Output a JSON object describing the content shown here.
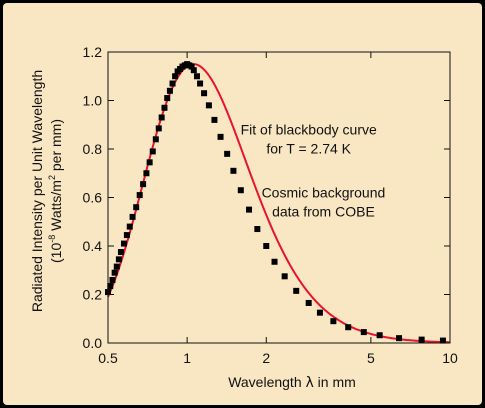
{
  "chart_data": {
    "type": "scatter",
    "title": "",
    "xlabel_prefix": "Wavelength ",
    "xlabel_symbol": "λ",
    "xlabel_suffix": " in mm",
    "ylabel_line1": "Radiated Intensity per Unit Wavelength",
    "ylabel_line2_a": "(10",
    "ylabel_line2_sup1": "-8",
    "ylabel_line2_b": " Watts/m",
    "ylabel_line2_sup2": "2",
    "ylabel_line2_c": " per mm)",
    "x_scale": "log",
    "xlim": [
      0.5,
      10
    ],
    "ylim": [
      0,
      1.2
    ],
    "x_ticks": [
      0.5,
      1,
      2,
      5,
      10
    ],
    "x_tick_labels": [
      "0.5",
      "1",
      "2",
      "5",
      "10"
    ],
    "y_ticks": [
      0,
      0.2,
      0.4,
      0.6,
      0.8,
      1.0,
      1.2
    ],
    "y_tick_labels": [
      "0.0",
      "0.2",
      "0.4",
      "0.6",
      "0.8",
      "1.0",
      "1.2"
    ],
    "grid": false,
    "annotations": [
      {
        "lines": [
          "Fit of blackbody curve",
          "for T = 2.74 K"
        ],
        "x": 2.9,
        "y": 0.86
      },
      {
        "lines": [
          "Cosmic background",
          "data from COBE"
        ],
        "x": 3.3,
        "y": 0.6
      }
    ],
    "series": [
      {
        "kind": "data",
        "marker": "square",
        "color": "#000000",
        "x": [
          0.5,
          0.51,
          0.52,
          0.53,
          0.54,
          0.55,
          0.56,
          0.575,
          0.59,
          0.605,
          0.62,
          0.64,
          0.66,
          0.68,
          0.7,
          0.72,
          0.74,
          0.76,
          0.78,
          0.8,
          0.82,
          0.84,
          0.86,
          0.88,
          0.9,
          0.92,
          0.94,
          0.96,
          0.98,
          1.0,
          1.02,
          1.04,
          1.06,
          1.09,
          1.12,
          1.16,
          1.21,
          1.27,
          1.34,
          1.42,
          1.5,
          1.6,
          1.72,
          1.85,
          2.0,
          2.15,
          2.35,
          2.6,
          2.9,
          3.2,
          3.6,
          4.1,
          4.7,
          5.4,
          6.4,
          7.8,
          9.4
        ],
        "y": [
          0.21,
          0.235,
          0.26,
          0.29,
          0.315,
          0.345,
          0.375,
          0.41,
          0.445,
          0.48,
          0.52,
          0.56,
          0.61,
          0.655,
          0.7,
          0.745,
          0.79,
          0.84,
          0.885,
          0.93,
          0.97,
          1.01,
          1.04,
          1.07,
          1.1,
          1.12,
          1.13,
          1.14,
          1.145,
          1.15,
          1.145,
          1.14,
          1.125,
          1.1,
          1.07,
          1.03,
          0.98,
          0.92,
          0.85,
          0.78,
          0.71,
          0.63,
          0.55,
          0.47,
          0.4,
          0.335,
          0.275,
          0.215,
          0.165,
          0.125,
          0.09,
          0.065,
          0.045,
          0.032,
          0.02,
          0.014,
          0.01
        ]
      },
      {
        "kind": "fit",
        "color": "#e8132c",
        "temperature_K": 2.74
      }
    ]
  }
}
